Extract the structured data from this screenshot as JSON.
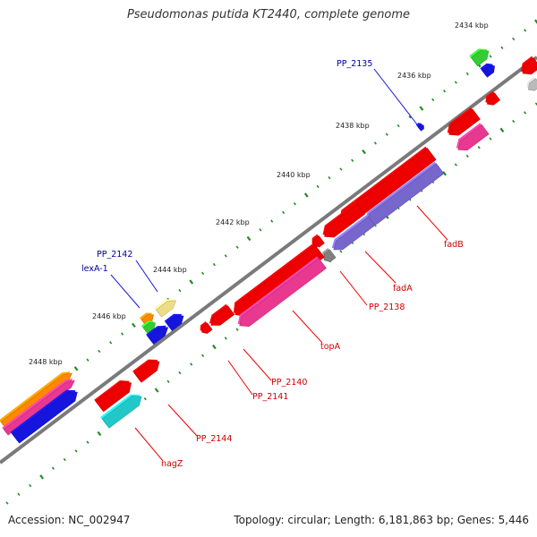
{
  "header": {
    "title": "Pseudomonas putida KT2440, complete genome"
  },
  "footer": {
    "accession": "Accession: NC_002947",
    "summary": "Topology: circular; Length: 6,181,863 bp; Genes: 5,446"
  },
  "colors": {
    "backbone": "#7a7a7a",
    "tick": "#1e8c1e",
    "red": "#ee0000",
    "pink": "#e8388f",
    "purple": "#7766cc",
    "blue": "#1515dd",
    "green": "#33cc33",
    "orange": "#ff8800",
    "cyan": "#22c8c8",
    "khaki": "#eedd88",
    "gray": "#808080",
    "silver": "#bbbbbb",
    "label_red": "#cc0000",
    "label_blue": "#000099"
  },
  "scale_ticks": [
    {
      "label": "2434 kbp"
    },
    {
      "label": "2436 kbp"
    },
    {
      "label": "2438 kbp"
    },
    {
      "label": "2440 kbp"
    },
    {
      "label": "2442 kbp"
    },
    {
      "label": "2444 kbp"
    },
    {
      "label": "2446 kbp"
    },
    {
      "label": "2448 kbp"
    }
  ],
  "feature_labels": [
    {
      "name": "PP_2135",
      "color": "blue"
    },
    {
      "name": "PP_2142",
      "color": "blue"
    },
    {
      "name": "lexA-1",
      "color": "blue"
    },
    {
      "name": "fadB",
      "color": "red"
    },
    {
      "name": "fadA",
      "color": "red"
    },
    {
      "name": "PP_2138",
      "color": "red"
    },
    {
      "name": "topA",
      "color": "red"
    },
    {
      "name": "PP_2140",
      "color": "red"
    },
    {
      "name": "PP_2141",
      "color": "red"
    },
    {
      "name": "PP_2144",
      "color": "red"
    },
    {
      "name": "nagZ",
      "color": "red"
    }
  ]
}
